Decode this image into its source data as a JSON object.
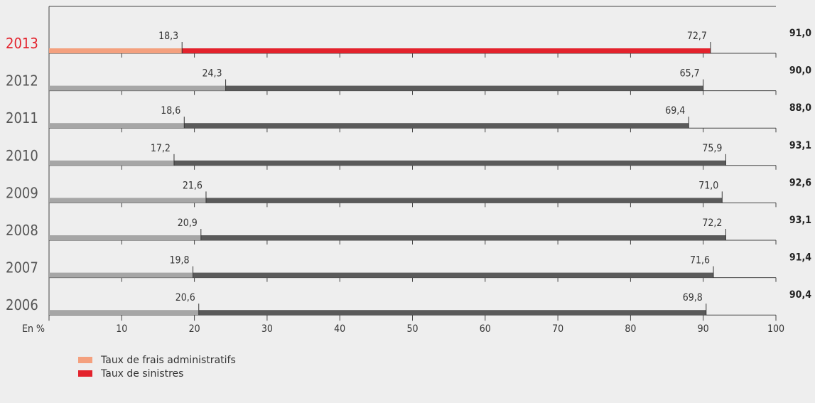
{
  "chart_data": {
    "type": "bar",
    "orientation": "horizontal",
    "stacked": true,
    "unit_label": "En %",
    "xlim": [
      0,
      100
    ],
    "x_ticks": [
      0,
      10,
      20,
      30,
      40,
      50,
      60,
      70,
      80,
      90,
      100
    ],
    "grid": false,
    "categories": [
      "2013",
      "2012",
      "2011",
      "2010",
      "2009",
      "2008",
      "2007",
      "2006"
    ],
    "highlight_category": "2013",
    "series": [
      {
        "name": "Taux de frais administratifs",
        "values": [
          18.3,
          24.3,
          18.6,
          17.2,
          21.6,
          20.9,
          19.8,
          20.6
        ]
      },
      {
        "name": "Taux de sinistres",
        "values": [
          72.7,
          65.7,
          69.4,
          75.9,
          71.0,
          72.2,
          71.6,
          69.8
        ]
      }
    ],
    "value_labels": {
      "frais": [
        "18,3",
        "24,3",
        "18,6",
        "17,2",
        "21,6",
        "20,9",
        "19,8",
        "20,6"
      ],
      "sinistres": [
        "72,7",
        "65,7",
        "69,4",
        "75,9",
        "71,0",
        "72,2",
        "71,6",
        "69,8"
      ],
      "totals": [
        "91,0",
        "90,0",
        "88,0",
        "93,1",
        "92,6",
        "93,1",
        "91,4",
        "90,4"
      ]
    },
    "colors": {
      "highlight_frais": "#f4a07e",
      "highlight_sinistres": "#e3222c",
      "frais": "#a6a6a6",
      "sinistres": "#5a5a5a",
      "highlight_year": "#e3222c",
      "year": "#555555",
      "axis": "#444444",
      "background": "#eeeeee"
    },
    "legend": {
      "position": "bottom-left",
      "items": [
        {
          "label": "Taux de frais administratifs",
          "color": "#f4a07e"
        },
        {
          "label": "Taux de sinistres",
          "color": "#e3222c"
        }
      ]
    }
  }
}
